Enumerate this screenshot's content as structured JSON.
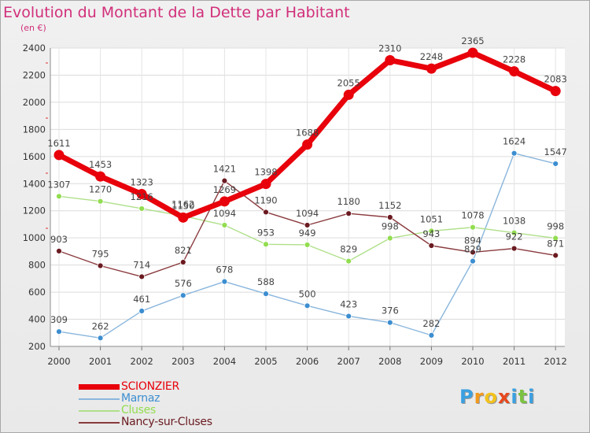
{
  "title": "Evolution du Montant de la Dette par Habitant",
  "unit": "(en €)",
  "logo": {
    "letters": [
      "P",
      "r",
      "o",
      "x",
      "i",
      "t",
      "i"
    ],
    "colors": [
      "#3aa0e0",
      "#f29a1d",
      "#f2c21d",
      "#e8481d",
      "#3aa0e0",
      "#7cc242",
      "#3aa0e0"
    ]
  },
  "chart_data": {
    "type": "line",
    "x": [
      "2000",
      "2001",
      "2002",
      "2003",
      "2004",
      "2005",
      "2006",
      "2007",
      "2008",
      "2009",
      "2010",
      "2011",
      "2012"
    ],
    "ylim": [
      200,
      2400
    ],
    "yticks": [
      "200",
      "400",
      "600",
      "800",
      "1000",
      "1200",
      "1400",
      "1600",
      "1800",
      "2000",
      "2200",
      "2400"
    ],
    "grid": true,
    "legend": "bottom-left",
    "series": [
      {
        "name": "SCIONZIER",
        "color": "#e8000b",
        "line_color": "#e8000b",
        "emphasis": true,
        "values": [
          1611,
          1453,
          1323,
          1150,
          1269,
          1398,
          1688,
          2055,
          2310,
          2248,
          2365,
          2228,
          2083
        ],
        "labels": [
          "1611",
          "1453",
          "1323",
          "1150",
          "1269",
          "1398",
          "1688",
          "2055",
          "2310",
          "2248",
          "2365",
          "2228",
          "2083"
        ]
      },
      {
        "name": "Marnaz",
        "color": "#3c8ed0",
        "line_color": "#8ab6dc",
        "emphasis": false,
        "values": [
          309,
          262,
          461,
          576,
          678,
          588,
          500,
          423,
          376,
          282,
          829,
          1624,
          1547
        ],
        "labels": [
          "309",
          "262",
          "461",
          "576",
          "678",
          "588",
          "500",
          "423",
          "376",
          "282",
          "829",
          "1624",
          "1547"
        ]
      },
      {
        "name": "Cluses",
        "color": "#92dd50",
        "line_color": "#b0e08a",
        "emphasis": false,
        "values": [
          1307,
          1270,
          1216,
          1162,
          1094,
          953,
          949,
          829,
          998,
          1051,
          1078,
          1038,
          998
        ],
        "labels": [
          "1307",
          "1270",
          "1216",
          "1162",
          "1094",
          "953",
          "949",
          "829",
          "998",
          "1051",
          "1078",
          "1038",
          "998"
        ]
      },
      {
        "name": "Nancy-sur-Cluses",
        "color": "#6a1a20",
        "line_color": "#8a3a3e",
        "emphasis": false,
        "values": [
          903,
          795,
          714,
          821,
          1421,
          1190,
          1094,
          1180,
          1152,
          943,
          894,
          922,
          871
        ],
        "labels": [
          "903",
          "795",
          "714",
          "821",
          "1421",
          "1190",
          "1094",
          "1180",
          "1152",
          "943",
          "894",
          "922",
          "871"
        ]
      }
    ]
  }
}
